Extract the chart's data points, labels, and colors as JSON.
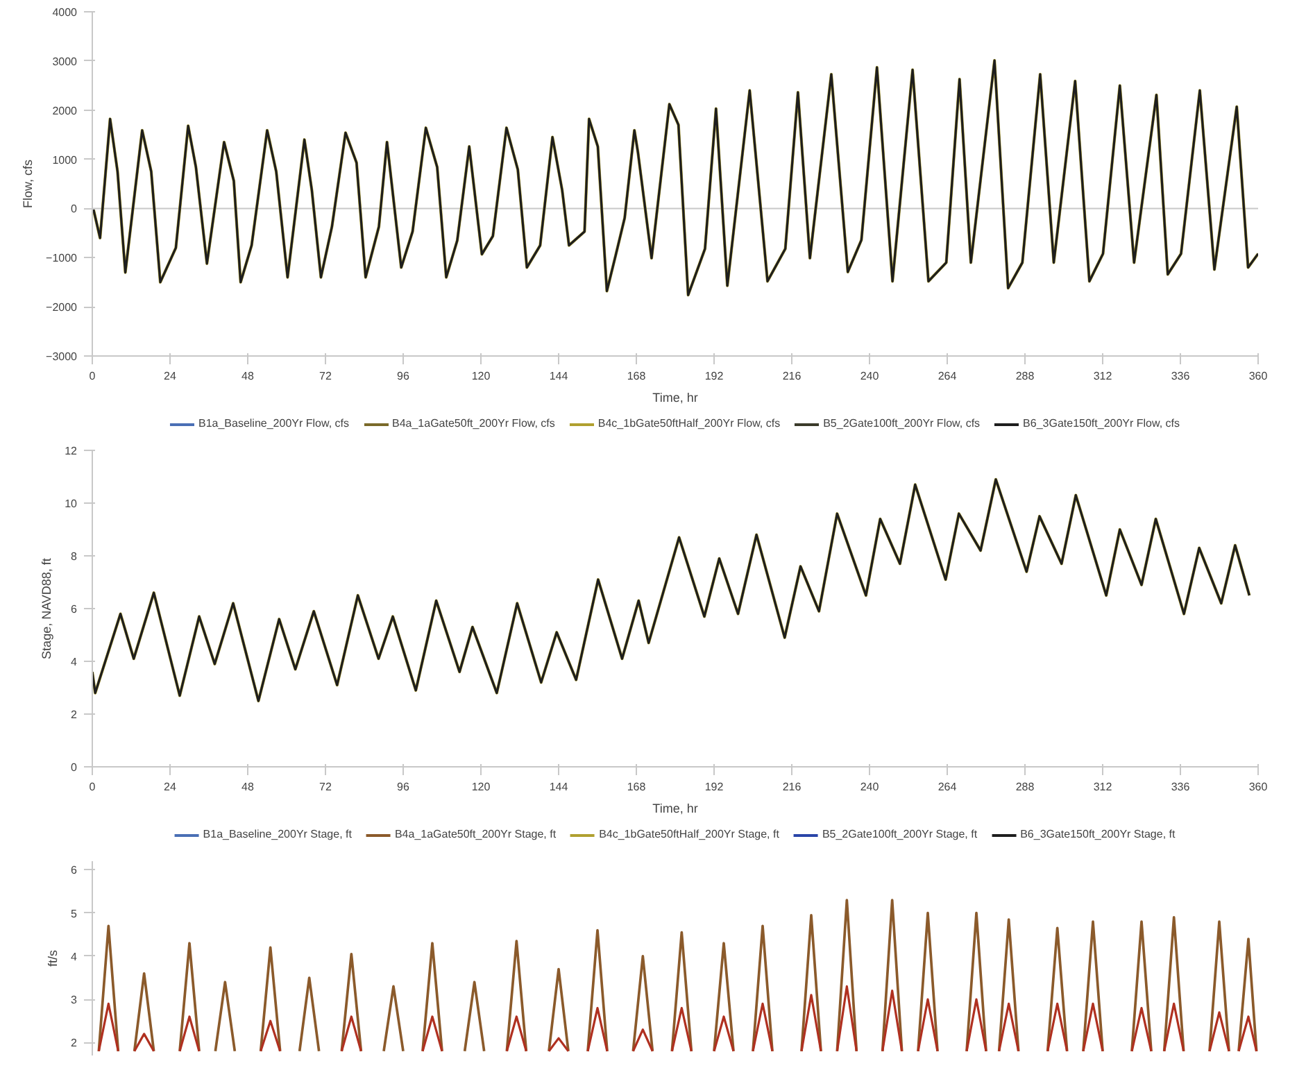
{
  "chart_data": [
    {
      "type": "line",
      "xlabel": "Time, hr",
      "ylabel": "Flow, cfs",
      "xlim": [
        0,
        360
      ],
      "ylim": [
        -3000,
        4000
      ],
      "xticks": [
        0,
        24,
        48,
        72,
        96,
        120,
        144,
        168,
        192,
        216,
        240,
        264,
        288,
        312,
        336,
        360
      ],
      "yticks": [
        -3000,
        -2000,
        -1000,
        0,
        1000,
        2000,
        3000,
        4000
      ],
      "grid": false,
      "legend": "bottom",
      "ref_lines": [
        {
          "axis": "y",
          "value": 0
        }
      ],
      "x": [
        0.3,
        2.4,
        5.5,
        7.8,
        10.2,
        15.4,
        18.2,
        21,
        25.8,
        29.6,
        32,
        35.4,
        40.7,
        43.7,
        45.8,
        49.2,
        54,
        56.8,
        60.3,
        65.5,
        67.8,
        70.6,
        74,
        78.2,
        81.6,
        84.4,
        88.5,
        91,
        95.4,
        98.9,
        103,
        106.5,
        109.3,
        112.7,
        116.4,
        120.3,
        123.7,
        127.9,
        131.4,
        134.2,
        138.3,
        142.1,
        145.1,
        147.2,
        152,
        153.4,
        156.1,
        158.9,
        161.7,
        164.4,
        167.4,
        168.5,
        172.7,
        178.2,
        181,
        184,
        189.2,
        192.6,
        196.1,
        203,
        208.5,
        214,
        217.9,
        221.6,
        228.2,
        233.3,
        237.5,
        242.3,
        247.1,
        253.3,
        258.2,
        263.7,
        267.8,
        271.3,
        278.6,
        282.8,
        287.2,
        292.7,
        296.9,
        303.5,
        307.9,
        312.1,
        317.3,
        321.7,
        328.6,
        332.1,
        336.2,
        342,
        346.5,
        353.4,
        356.9,
        360
      ],
      "series": [
        {
          "name": "B1a_Baseline_200Yr Flow, cfs",
          "color": "#4a6fb5",
          "values": [
            null,
            null,
            null,
            null,
            null,
            null,
            null,
            null,
            null,
            null,
            null,
            null,
            null,
            null,
            null,
            null,
            null,
            null,
            null,
            null,
            null,
            null,
            null,
            null,
            null,
            null,
            null,
            null,
            null,
            null,
            null,
            null,
            null,
            null,
            null,
            null,
            null,
            null,
            null,
            null,
            null,
            null,
            null,
            null,
            null,
            null,
            null,
            null,
            null,
            null,
            null,
            null,
            null,
            null,
            null,
            null,
            null,
            null,
            null,
            null,
            null,
            null,
            null,
            null,
            null,
            null,
            null,
            null,
            null,
            null,
            null,
            null,
            null,
            null,
            null,
            null,
            null,
            null,
            null,
            null,
            null,
            null,
            null,
            null,
            null,
            null,
            null,
            null,
            null,
            null,
            null,
            null
          ]
        },
        {
          "name": "B4a_1aGate50ft_200Yr Flow, cfs",
          "color": "#7a6a2a",
          "values": [
            null,
            null,
            null,
            null,
            null,
            null,
            null,
            null,
            null,
            null,
            null,
            null,
            null,
            null,
            null,
            null,
            null,
            null,
            null,
            null,
            null,
            null,
            null,
            null,
            null,
            null,
            null,
            null,
            null,
            null,
            null,
            null,
            null,
            null,
            null,
            null,
            null,
            null,
            null,
            null,
            null,
            null,
            null,
            null,
            null,
            null,
            null,
            null,
            null,
            null,
            null,
            null,
            null,
            null,
            null,
            null,
            null,
            null,
            null,
            null,
            null,
            null,
            null,
            null,
            null,
            null,
            null,
            null,
            null,
            null,
            null,
            null,
            null,
            null,
            null,
            null,
            null,
            null,
            null,
            null,
            null,
            null,
            null,
            null,
            null,
            null,
            null,
            null,
            null,
            null,
            null,
            null
          ]
        },
        {
          "name": "B4c_1bGate50ftHalf_200Yr Flow, cfs",
          "color": "#b0a030",
          "values": [
            0,
            -600,
            1820,
            750,
            -1300,
            1590,
            750,
            -1500,
            -800,
            1680,
            840,
            -1120,
            1350,
            560,
            -1500,
            -750,
            1590,
            750,
            -1400,
            1400,
            370,
            -1400,
            -370,
            1540,
            930,
            -1400,
            -370,
            1350,
            -1200,
            -470,
            1640,
            840,
            -1400,
            -650,
            1260,
            -930,
            -560,
            1640,
            790,
            -1200,
            -750,
            1450,
            370,
            -750,
            -470,
            1820,
            1260,
            -1680,
            -930,
            -190,
            1590,
            1140,
            -1010,
            2120,
            1700,
            -1760,
            -820,
            2030,
            -1570,
            2400,
            -1480,
            -820,
            2360,
            -1010,
            2730,
            -1290,
            -640,
            2870,
            -1480,
            2820,
            -1480,
            -1100,
            2630,
            -1100,
            3010,
            -1620,
            -1100,
            2730,
            -1100,
            2590,
            -1480,
            -920,
            2500,
            -1100,
            2310,
            -1340,
            -920,
            2400,
            -1240,
            2070,
            -1200,
            -920
          ]
        },
        {
          "name": "B5_2Gate100ft_200Yr Flow, cfs",
          "color": "#3b3b2b",
          "values": [
            null,
            null,
            null,
            null,
            null,
            null,
            null,
            null,
            null,
            null,
            null,
            null,
            null,
            null,
            null,
            null,
            null,
            null,
            null,
            null,
            null,
            null,
            null,
            null,
            null,
            null,
            null,
            null,
            null,
            null,
            null,
            null,
            null,
            null,
            null,
            null,
            null,
            null,
            null,
            null,
            null,
            null,
            null,
            null,
            null,
            null,
            null,
            null,
            null,
            null,
            null,
            null,
            null,
            null,
            null,
            null,
            null,
            null,
            null,
            null,
            null,
            null,
            null,
            null,
            null,
            null,
            null,
            null,
            null,
            null,
            null,
            null,
            null,
            null,
            null,
            null,
            null,
            null,
            null,
            null,
            null,
            null,
            null,
            null,
            null,
            null,
            null,
            null,
            null,
            null,
            null,
            null
          ]
        },
        {
          "name": "B6_3Gate150ft_200Yr Flow, cfs",
          "color": "#1e1e1e",
          "values": [
            0,
            -600,
            1820,
            750,
            -1300,
            1590,
            750,
            -1500,
            -800,
            1680,
            840,
            -1120,
            1350,
            560,
            -1500,
            -750,
            1590,
            750,
            -1400,
            1400,
            370,
            -1400,
            -370,
            1540,
            930,
            -1400,
            -370,
            1350,
            -1200,
            -470,
            1640,
            840,
            -1400,
            -650,
            1260,
            -930,
            -560,
            1640,
            790,
            -1200,
            -750,
            1450,
            370,
            -750,
            -470,
            1820,
            1260,
            -1680,
            -930,
            -190,
            1590,
            1140,
            -1010,
            2120,
            1700,
            -1760,
            -820,
            2030,
            -1570,
            2400,
            -1480,
            -820,
            2360,
            -1010,
            2730,
            -1290,
            -640,
            2870,
            -1480,
            2820,
            -1480,
            -1100,
            2630,
            -1100,
            3010,
            -1620,
            -1100,
            2730,
            -1100,
            2590,
            -1480,
            -920,
            2500,
            -1100,
            2310,
            -1340,
            -920,
            2400,
            -1240,
            2070,
            -1200,
            -920
          ]
        }
      ]
    },
    {
      "type": "line",
      "xlabel": "Time, hr",
      "ylabel": "Stage, NAVD88, ft",
      "xlim": [
        0,
        360
      ],
      "ylim": [
        0,
        12
      ],
      "xticks": [
        0,
        24,
        48,
        72,
        96,
        120,
        144,
        168,
        192,
        216,
        240,
        264,
        288,
        312,
        336,
        360
      ],
      "yticks": [
        0,
        2,
        4,
        6,
        8,
        10,
        12
      ],
      "grid": false,
      "legend": "bottom",
      "x": [
        0,
        0.9,
        8.7,
        12.8,
        19,
        27,
        33,
        37.8,
        43.5,
        51.3,
        57.7,
        62.7,
        68.4,
        75.6,
        82,
        88.4,
        92.8,
        99.9,
        106.2,
        113.4,
        117.4,
        124.9,
        131.2,
        138.6,
        143.4,
        149.4,
        156.2,
        163.6,
        168.7,
        171.8,
        181.2,
        189,
        193.6,
        199.4,
        205.1,
        213.8,
        218.7,
        224.4,
        230,
        238.9,
        243.3,
        249.4,
        254.1,
        263.5,
        267.6,
        274.3,
        279,
        288.5,
        292.5,
        299.3,
        303.7,
        313.1,
        317.3,
        324,
        328.4,
        337.1,
        341.8,
        348.6,
        352.9,
        357.3
      ],
      "series": [
        {
          "name": "B1a_Baseline_200Yr Stage, ft",
          "color": "#4a6fb5",
          "values": [
            null,
            null,
            null,
            null,
            null,
            null,
            null,
            null,
            null,
            null,
            null,
            null,
            null,
            null,
            null,
            null,
            null,
            null,
            null,
            null,
            null,
            null,
            null,
            null,
            null,
            null,
            null,
            null,
            null,
            null,
            null,
            null,
            null,
            null,
            null,
            null,
            null,
            null,
            null,
            null,
            null,
            null,
            null,
            null,
            null,
            null,
            null,
            null,
            null,
            null,
            null,
            null,
            null,
            null,
            null,
            null,
            null,
            null,
            null,
            null
          ]
        },
        {
          "name": "B4a_1aGate50ft_200Yr Stage, ft",
          "color": "#8b5a2b",
          "values": [
            null,
            null,
            null,
            null,
            null,
            null,
            null,
            null,
            null,
            null,
            null,
            null,
            null,
            null,
            null,
            null,
            null,
            null,
            null,
            null,
            null,
            null,
            null,
            null,
            null,
            null,
            null,
            null,
            null,
            null,
            null,
            null,
            null,
            null,
            null,
            null,
            null,
            null,
            null,
            null,
            null,
            null,
            null,
            null,
            null,
            null,
            null,
            null,
            null,
            null,
            null,
            null,
            null,
            null,
            null,
            null,
            null,
            null,
            null,
            null
          ]
        },
        {
          "name": "B4c_1bGate50ftHalf_200Yr Stage, ft",
          "color": "#b0a030",
          "values": [
            3.6,
            2.8,
            5.8,
            4.1,
            6.6,
            2.7,
            5.7,
            3.9,
            6.2,
            2.5,
            5.6,
            3.7,
            5.9,
            3.1,
            6.5,
            4.1,
            5.7,
            2.9,
            6.3,
            3.6,
            5.3,
            2.8,
            6.2,
            3.2,
            5.1,
            3.3,
            7.1,
            4.1,
            6.3,
            4.7,
            8.7,
            5.7,
            7.9,
            5.8,
            8.8,
            4.9,
            7.6,
            5.9,
            9.6,
            6.5,
            9.4,
            7.7,
            10.7,
            7.1,
            9.6,
            8.2,
            10.9,
            7.4,
            9.5,
            7.7,
            10.3,
            6.5,
            9.0,
            6.9,
            9.4,
            5.8,
            8.3,
            6.2,
            8.4,
            6.5
          ]
        },
        {
          "name": "B5_2Gate100ft_200Yr Stage, ft",
          "color": "#2a45a8",
          "values": [
            null,
            null,
            null,
            null,
            null,
            null,
            null,
            null,
            null,
            null,
            null,
            null,
            null,
            null,
            null,
            null,
            null,
            null,
            null,
            null,
            null,
            null,
            null,
            null,
            null,
            null,
            null,
            null,
            null,
            null,
            null,
            null,
            null,
            null,
            null,
            null,
            null,
            null,
            null,
            null,
            null,
            null,
            null,
            null,
            null,
            null,
            null,
            null,
            null,
            null,
            null,
            null,
            null,
            null,
            null,
            null,
            null,
            null,
            null,
            null
          ]
        },
        {
          "name": "B6_3Gate150ft_200Yr Stage, ft",
          "color": "#1e1e1e",
          "values": [
            3.6,
            2.8,
            5.8,
            4.1,
            6.6,
            2.7,
            5.7,
            3.9,
            6.2,
            2.5,
            5.6,
            3.7,
            5.9,
            3.1,
            6.5,
            4.1,
            5.7,
            2.9,
            6.3,
            3.6,
            5.3,
            2.8,
            6.2,
            3.2,
            5.1,
            3.3,
            7.1,
            4.1,
            6.3,
            4.7,
            8.7,
            5.7,
            7.9,
            5.8,
            8.8,
            4.9,
            7.6,
            5.9,
            9.6,
            6.5,
            9.4,
            7.7,
            10.7,
            7.1,
            9.6,
            8.2,
            10.9,
            7.4,
            9.5,
            7.7,
            10.3,
            6.5,
            9.0,
            6.9,
            9.4,
            5.8,
            8.3,
            6.2,
            8.4,
            6.5
          ]
        }
      ]
    },
    {
      "type": "line",
      "ylabel": "ft/s",
      "xlim": [
        0,
        360
      ],
      "ylim": [
        1.7,
        6.2
      ],
      "yticks": [
        2,
        3,
        4,
        5,
        6
      ],
      "grid": false,
      "tick_labels": "y",
      "x": [
        2,
        5,
        8,
        10,
        13,
        16,
        19,
        21,
        27,
        30,
        33,
        35,
        38,
        41,
        44,
        46,
        52,
        55,
        58,
        60,
        64,
        67,
        70,
        72,
        77,
        80,
        83,
        85,
        90,
        93,
        96,
        98,
        102,
        105,
        108,
        110,
        115,
        118,
        121,
        123,
        128,
        131,
        134,
        136,
        141,
        144,
        147,
        149,
        153,
        156,
        159,
        161,
        167,
        170,
        173,
        175,
        179,
        182,
        185,
        187,
        192,
        195,
        198,
        200,
        204,
        207,
        210,
        212,
        219,
        222,
        225,
        227,
        230,
        233,
        236,
        238,
        244,
        247,
        250,
        252,
        255,
        258,
        261,
        263,
        270,
        273,
        276,
        278,
        280,
        283,
        286,
        288,
        295,
        298,
        301,
        303,
        306,
        309,
        312,
        314,
        321,
        324,
        327,
        329,
        331,
        334,
        337,
        339,
        345,
        348,
        351,
        353,
        354,
        357,
        359.5
      ],
      "series": [
        {
          "color": "#8b5a2b",
          "values": [
            1.8,
            4.7,
            1.8,
            null,
            1.8,
            3.6,
            1.8,
            null,
            1.8,
            4.3,
            1.8,
            null,
            1.8,
            3.4,
            1.8,
            null,
            1.8,
            4.2,
            1.8,
            null,
            1.8,
            3.5,
            1.8,
            null,
            1.8,
            4.05,
            1.8,
            null,
            1.8,
            3.3,
            1.8,
            null,
            1.8,
            4.3,
            1.8,
            null,
            1.8,
            3.4,
            1.8,
            null,
            1.8,
            4.35,
            1.8,
            null,
            1.8,
            3.7,
            1.8,
            null,
            1.8,
            4.6,
            1.8,
            null,
            1.8,
            4.0,
            1.8,
            null,
            1.8,
            4.55,
            1.8,
            null,
            1.8,
            4.3,
            1.8,
            null,
            1.8,
            4.7,
            1.8,
            null,
            1.8,
            4.95,
            1.8,
            null,
            1.8,
            5.3,
            1.8,
            null,
            1.8,
            5.3,
            1.8,
            null,
            1.8,
            5.0,
            1.8,
            null,
            1.8,
            5.0,
            1.8,
            null,
            1.8,
            4.85,
            1.8,
            null,
            1.8,
            4.65,
            1.8,
            null,
            1.8,
            4.8,
            1.8,
            null,
            1.8,
            4.8,
            1.8,
            null,
            1.8,
            4.9,
            1.8,
            null,
            1.8,
            4.8,
            1.8,
            null,
            1.8,
            4.4,
            1.8
          ]
        },
        {
          "color": "#b03020",
          "values": [
            1.8,
            2.9,
            1.8,
            null,
            1.8,
            2.2,
            1.8,
            null,
            1.8,
            2.6,
            1.8,
            null,
            null,
            null,
            null,
            null,
            1.8,
            2.5,
            1.8,
            null,
            null,
            null,
            null,
            null,
            1.8,
            2.6,
            1.8,
            null,
            null,
            null,
            null,
            null,
            1.8,
            2.6,
            1.8,
            null,
            null,
            null,
            null,
            null,
            1.8,
            2.6,
            1.8,
            null,
            1.8,
            2.1,
            1.8,
            null,
            1.8,
            2.8,
            1.8,
            null,
            1.8,
            2.3,
            1.8,
            null,
            1.8,
            2.8,
            1.8,
            null,
            1.8,
            2.6,
            1.8,
            null,
            1.8,
            2.9,
            1.8,
            null,
            1.8,
            3.1,
            1.8,
            null,
            1.8,
            3.3,
            1.8,
            null,
            1.8,
            3.2,
            1.8,
            null,
            1.8,
            3.0,
            1.8,
            null,
            1.8,
            3.0,
            1.8,
            null,
            1.8,
            2.9,
            1.8,
            null,
            1.8,
            2.9,
            1.8,
            null,
            1.8,
            2.9,
            1.8,
            null,
            1.8,
            2.8,
            1.8,
            null,
            1.8,
            2.9,
            1.8,
            null,
            1.8,
            2.7,
            1.8,
            null,
            1.8,
            2.6,
            1.8
          ]
        }
      ]
    }
  ]
}
